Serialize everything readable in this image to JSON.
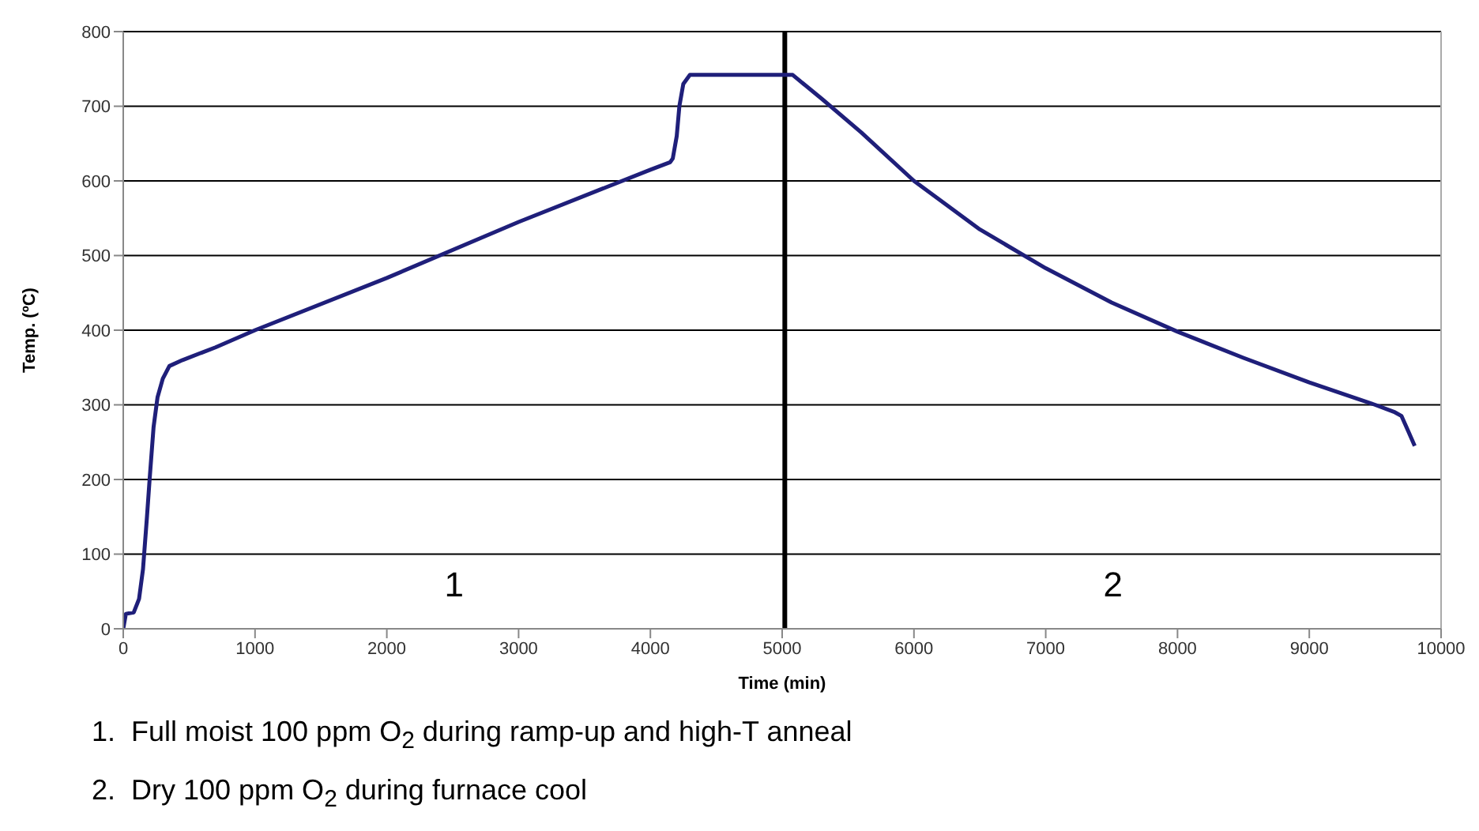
{
  "chart_data": {
    "type": "line",
    "xlabel": "Time (min)",
    "ylabel": "Temp. (ºC)",
    "xlim": [
      0,
      10000
    ],
    "xticks": [
      0,
      1000,
      2000,
      3000,
      4000,
      5000,
      6000,
      7000,
      8000,
      9000,
      10000
    ],
    "ylim": [
      0,
      800
    ],
    "yticks": [
      0,
      100,
      200,
      300,
      400,
      500,
      600,
      700,
      800
    ],
    "grid": "y",
    "marker": "none",
    "line_style": "solid",
    "series": [
      {
        "color": "#1f1f7a",
        "x": [
          0,
          20,
          80,
          120,
          150,
          180,
          200,
          230,
          260,
          300,
          350,
          450,
          700,
          1000,
          2000,
          3000,
          4000,
          4150,
          4170,
          4200,
          4220,
          4250,
          4300,
          5000,
          5080,
          5300,
          5600,
          6000,
          6500,
          7000,
          7500,
          8000,
          8500,
          9000,
          9500,
          9650,
          9700,
          9750,
          9800
        ],
        "values": [
          0,
          20,
          22,
          40,
          80,
          150,
          200,
          270,
          310,
          335,
          352,
          360,
          377,
          400,
          470,
          545,
          615,
          625,
          630,
          660,
          700,
          730,
          742,
          742,
          742,
          710,
          665,
          600,
          535,
          483,
          437,
          398,
          363,
          330,
          300,
          290,
          285,
          265,
          245
        ]
      }
    ],
    "ref_lines": [
      {
        "axis": "x",
        "value": 5020,
        "color": "#000000"
      }
    ],
    "annotations": [
      "1",
      "2",
      "1.  Full moist 100 ppm O$_{2}$ during ramp-up and high-T anneal",
      "2.  Dry 100 ppm O$_{2}$ during furnace cool"
    ]
  }
}
